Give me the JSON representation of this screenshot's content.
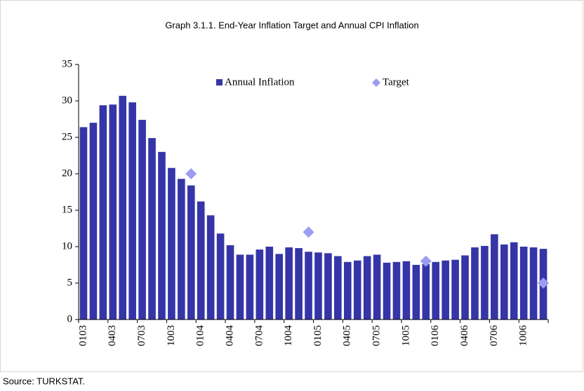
{
  "chart_data": {
    "type": "bar",
    "title": "Graph 3.1.1. End-Year Inflation Target and Annual CPI Inflation",
    "source": "Source: TURKSTAT.",
    "categories": [
      "0103",
      null,
      null,
      "0403",
      null,
      null,
      "0703",
      null,
      null,
      "1003",
      null,
      null,
      "0104",
      null,
      null,
      "0404",
      null,
      null,
      "0704",
      null,
      null,
      "1004",
      null,
      null,
      "0105",
      null,
      null,
      "0405",
      null,
      null,
      "0705",
      null,
      null,
      "1005",
      null,
      null,
      "0106",
      null,
      null,
      "0406",
      null,
      null,
      "0706",
      null,
      null,
      "1006",
      null,
      null
    ],
    "series": [
      {
        "name": "Annual Inflation",
        "color": "#3535a8",
        "kind": "bar",
        "values": [
          26.4,
          27.0,
          29.4,
          29.5,
          30.7,
          29.8,
          27.4,
          24.9,
          23.0,
          20.8,
          19.3,
          18.4,
          16.2,
          14.3,
          11.8,
          10.2,
          8.9,
          8.9,
          9.6,
          10.0,
          9.0,
          9.9,
          9.8,
          9.3,
          9.2,
          9.1,
          8.7,
          7.9,
          8.1,
          8.7,
          8.9,
          7.8,
          7.9,
          8.0,
          7.5,
          7.6,
          7.9,
          8.1,
          8.2,
          8.8,
          9.9,
          10.1,
          11.7,
          10.3,
          10.6,
          10.0,
          9.9,
          9.7
        ]
      },
      {
        "name": "Target",
        "color": "#9c9cf2",
        "kind": "diamond",
        "values": [
          null,
          null,
          null,
          null,
          null,
          null,
          null,
          null,
          null,
          null,
          null,
          20,
          null,
          null,
          null,
          null,
          null,
          null,
          null,
          null,
          null,
          null,
          null,
          12,
          null,
          null,
          null,
          null,
          null,
          null,
          null,
          null,
          null,
          null,
          null,
          8,
          null,
          null,
          null,
          null,
          null,
          null,
          null,
          null,
          null,
          null,
          null,
          5
        ]
      }
    ],
    "ylim": [
      0,
      35
    ],
    "yticks": [
      0,
      5,
      10,
      15,
      20,
      25,
      30,
      35
    ]
  }
}
